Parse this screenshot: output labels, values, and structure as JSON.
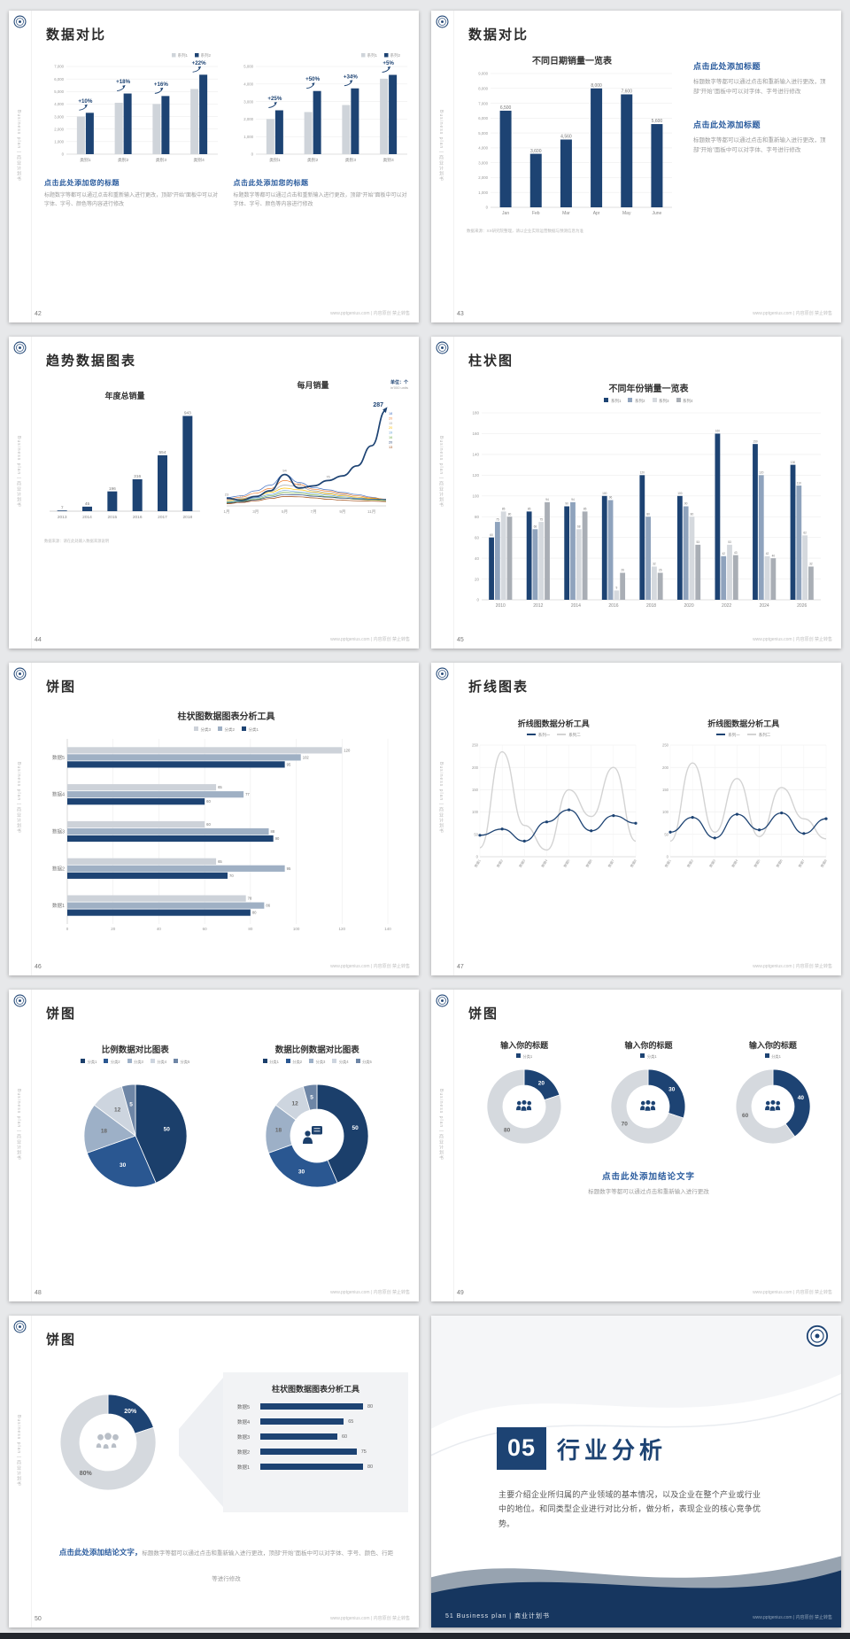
{
  "meta": {
    "page_bg": "#e7e8ea",
    "accent": "#1d4373",
    "heading_blue": "#2b5c9e",
    "footer_site": "www.pptgenius.com | 内容原创 禁止转售",
    "sidebar_text": "Business plan | 商业计划书"
  },
  "slides": [
    {
      "page": "42",
      "title": "数据对比",
      "type": "compare_bars",
      "charts": [
        {
          "legend": [
            "系列1",
            "系列2"
          ],
          "colors": [
            "#cfd4da",
            "#1d4373"
          ],
          "ymax": 7000,
          "ystep": 1000,
          "categories": [
            "类别1",
            "类别2",
            "类别3",
            "类别4"
          ],
          "series": [
            [
              3000,
              4100,
              4000,
              5200
            ],
            [
              3300,
              4840,
              4640,
              6340
            ]
          ],
          "annotations": [
            "+10%",
            "+18%",
            "+16%",
            "+22%"
          ],
          "heading": "点击此处添加您的标题",
          "body": "标题数字等都可以通过点击和重新输入进行更改，顶部“开始”面板中可以对字体、字号、颜色等内容进行修改"
        },
        {
          "legend": [
            "系列1",
            "系列2"
          ],
          "colors": [
            "#cfd4da",
            "#1d4373"
          ],
          "ymax": 5000,
          "ystep": 1000,
          "categories": [
            "类别1",
            "类别2",
            "类别3",
            "类别4"
          ],
          "series": [
            [
              2000,
              2400,
              2800,
              4300
            ],
            [
              2500,
              3600,
              3750,
              4520
            ]
          ],
          "annotations": [
            "+25%",
            "+50%",
            "+34%",
            "+5%"
          ],
          "heading": "点击此处添加您的标题",
          "body": "标题数字等都可以通过点击和重新输入进行更改，顶部“开始”面板中可以对字体、字号、颜色等内容进行修改"
        }
      ]
    },
    {
      "page": "43",
      "title": "数据对比",
      "type": "bar_text",
      "chart": {
        "title": "不同日期销量一览表",
        "color": "#1d4373",
        "ymax": 9000,
        "ystep": 1000,
        "categories": [
          "Jan",
          "Feb",
          "Mar",
          "Apr",
          "May",
          "June"
        ],
        "values": [
          6500,
          3600,
          4560,
          8000,
          7600,
          5600
        ]
      },
      "note": "数据来源：XX研究院整理，请以企业实际运营数据与预测信息为准",
      "blocks": [
        {
          "heading": "点击此处添加标题",
          "body": "标题数字等都可以通过点击和重新输入进行更改，顶部“开始”面板中可以对字体、字号进行修改"
        },
        {
          "heading": "点击此处添加标题",
          "body": "标题数字等都可以通过点击和重新输入进行更改，顶部“开始”面板中可以对字体、字号进行修改"
        }
      ]
    },
    {
      "page": "44",
      "title": "趋势数据图表",
      "type": "trend",
      "left": {
        "title": "年度总销量",
        "color": "#1d4373",
        "categories": [
          "2013",
          "2014",
          "2015",
          "2016",
          "2017",
          "2018"
        ],
        "values": [
          7,
          45,
          196,
          316,
          554,
          943
        ]
      },
      "right": {
        "title": "每月销量",
        "unit": "单位：个",
        "unit2": "in'000 units",
        "xticks": [
          "1月",
          "3月",
          "5月",
          "7月",
          "9月",
          "11月"
        ],
        "ymax": 300,
        "main": {
          "color": "#1d4373",
          "values": [
            23,
            17,
            28,
            45,
            94,
            53,
            60,
            76,
            90,
            120,
            180,
            287
          ],
          "point_labels": {
            "0": "23",
            "1": "17",
            "4": "94",
            "5": "53",
            "7": "76"
          },
          "end_label": "287"
        },
        "minors": [
          {
            "end": "18",
            "color": "#4472c4",
            "values": [
              25,
              30,
              45,
              62,
              94,
              70,
              55,
              48,
              40,
              34,
              26,
              18
            ]
          },
          {
            "end": "20",
            "color": "#ed7d31",
            "values": [
              20,
              26,
              38,
              52,
              76,
              64,
              50,
              44,
              37,
              30,
              24,
              20
            ]
          },
          {
            "end": "15",
            "color": "#a5a5a5",
            "values": [
              18,
              22,
              30,
              44,
              62,
              58,
              45,
              39,
              33,
              26,
              20,
              15
            ]
          },
          {
            "end": "20",
            "color": "#ffc000",
            "values": [
              15,
              20,
              28,
              40,
              53,
              48,
              42,
              36,
              30,
              26,
              22,
              20
            ]
          },
          {
            "end": "19",
            "color": "#5b9bd5",
            "values": [
              12,
              16,
              24,
              34,
              46,
              42,
              38,
              32,
              27,
              23,
              20,
              19
            ]
          },
          {
            "end": "16",
            "color": "#70ad47",
            "values": [
              10,
              14,
              20,
              30,
              40,
              38,
              33,
              28,
              24,
              20,
              18,
              16
            ]
          },
          {
            "end": "20",
            "color": "#264478",
            "values": [
              8,
              12,
              18,
              26,
              34,
              33,
              29,
              26,
              23,
              21,
              20,
              20
            ]
          },
          {
            "end": "13",
            "color": "#9e480e",
            "values": [
              6,
              10,
              15,
              22,
              28,
              27,
              24,
              20,
              17,
              15,
              14,
              13
            ]
          }
        ]
      },
      "note": "数据来源：请在此处输入数据来源说明"
    },
    {
      "page": "45",
      "title": "柱状图",
      "type": "grouped_bar",
      "chart": {
        "title": "不同年份销量一览表",
        "legend": [
          "系列1",
          "系列2",
          "系列3",
          "系列4"
        ],
        "colors": [
          "#1d4373",
          "#8fa3bd",
          "#d5d9de",
          "#a9aeb5"
        ],
        "ymax": 180,
        "ystep": 20,
        "categories": [
          "2010",
          "2012",
          "2014",
          "2016",
          "2018",
          "2020",
          "2022",
          "2024",
          "2026"
        ],
        "series": [
          [
            60,
            85,
            90,
            100,
            120,
            100,
            160,
            150,
            130
          ],
          [
            75,
            68,
            94,
            96,
            80,
            90,
            42,
            120,
            110
          ],
          [
            85,
            75,
            68,
            9,
            32,
            80,
            53,
            42,
            62
          ],
          [
            80,
            94,
            85,
            26,
            26,
            53,
            43,
            40,
            32
          ]
        ]
      }
    },
    {
      "page": "46",
      "title": "饼图",
      "type": "hbar",
      "chart": {
        "title": "柱状图数据图表分析工具",
        "legend": [
          "分类3",
          "分类2",
          "分类1"
        ],
        "xmax": 140,
        "xstep": 20,
        "categories": [
          "数据5",
          "数据4",
          "数据3",
          "数据2",
          "数据1"
        ],
        "series": [
          {
            "name": "分类3",
            "color": "#cdd2d9",
            "values": [
              120,
              65,
              60,
              65,
              78
            ]
          },
          {
            "name": "分类2",
            "color": "#9fb0c4",
            "values": [
              102,
              77,
              88,
              95,
              86
            ]
          },
          {
            "name": "分类1",
            "color": "#1d4373",
            "values": [
              95,
              60,
              90,
              70,
              80
            ]
          }
        ]
      }
    },
    {
      "page": "47",
      "title": "折线图表",
      "type": "lines",
      "charts": [
        {
          "title": "折线图数据分析工具",
          "legend": [
            "系列一",
            "系列二"
          ],
          "colors": [
            "#1d4373",
            "#d3d3d3"
          ],
          "ymax": 250,
          "ystep": 50,
          "categories": [
            "数据1",
            "数据2",
            "数据3",
            "数据4",
            "数据5",
            "数据6",
            "数据7",
            "数据8"
          ],
          "series1": [
            48,
            62,
            35,
            78,
            105,
            58,
            92,
            75
          ],
          "series2": [
            20,
            235,
            70,
            15,
            150,
            90,
            200,
            35
          ]
        },
        {
          "title": "折线图数据分析工具",
          "legend": [
            "系列一",
            "系列二"
          ],
          "colors": [
            "#1d4373",
            "#d3d3d3"
          ],
          "ymax": 250,
          "ystep": 50,
          "categories": [
            "数据1",
            "数据2",
            "数据3",
            "数据4",
            "数据5",
            "数据6",
            "数据7",
            "数据8"
          ],
          "series1": [
            55,
            88,
            42,
            95,
            60,
            98,
            52,
            85
          ],
          "series2": [
            35,
            210,
            55,
            175,
            45,
            155,
            85,
            40
          ]
        }
      ]
    },
    {
      "page": "48",
      "title": "饼图",
      "type": "pie_donut",
      "left": {
        "title": "比例数据对比图表",
        "legend": [
          "分类1",
          "分类2",
          "分类3",
          "分类4",
          "分类5"
        ],
        "colors": [
          "#1b3f6b",
          "#2a5791",
          "#9db0c7",
          "#cdd5df",
          "#6e86a6"
        ],
        "values": [
          50,
          30,
          18,
          12,
          5
        ]
      },
      "right": {
        "title": "数据比例数据对比图表",
        "legend": [
          "分类1",
          "分类2",
          "分类3",
          "分类4",
          "分类5"
        ],
        "colors": [
          "#1b3f6b",
          "#2a5791",
          "#9db0c7",
          "#cdd5df",
          "#6e86a6"
        ],
        "values": [
          50,
          30,
          18,
          12,
          5
        ]
      }
    },
    {
      "page": "49",
      "title": "饼图",
      "type": "donut_trio",
      "dark_color": "#1d4373",
      "light_color": "#d5d9de",
      "donuts": [
        {
          "title": "输入你的标题",
          "legend": "分类1",
          "dark": 20,
          "light": 80
        },
        {
          "title": "输入你的标题",
          "legend": "分类1",
          "dark": 30,
          "light": 70
        },
        {
          "title": "输入你的标题",
          "legend": "分类1",
          "dark": 40,
          "light": 60
        }
      ],
      "conclusion": "点击此处添加结论文字",
      "body": "标题数字等都可以通过点击和重新输入进行更改"
    },
    {
      "page": "50",
      "title": "饼图",
      "type": "donut_report",
      "donut": {
        "dark": 20,
        "light": 80,
        "dark_label": "20%",
        "light_label": "80%",
        "dark_color": "#1d4373",
        "light_color": "#d5d9de"
      },
      "panel": {
        "title": "柱状图数据图表分析工具",
        "bar_color": "#1d4373",
        "categories": [
          "数据5",
          "数据4",
          "数据3",
          "数据2",
          "数据1"
        ],
        "values": [
          80,
          65,
          60,
          75,
          80
        ]
      },
      "conclusion": "点击此处添加结论文字，",
      "body": "标题数字等都可以通过点击和重新输入进行更改，顶部“开始”面板中可以对字体、字号、颜色、行距等进行修改"
    },
    {
      "page": "51",
      "title": "行业分析",
      "type": "divider",
      "number": "05",
      "body": "主要介绍企业所归属的产业领域的基本情况，以及企业在整个产业或行业中的地位。和同类型企业进行对比分析，做分析，表现企业的核心竞争优势。",
      "footer": "Business plan | 商业计划书"
    }
  ]
}
